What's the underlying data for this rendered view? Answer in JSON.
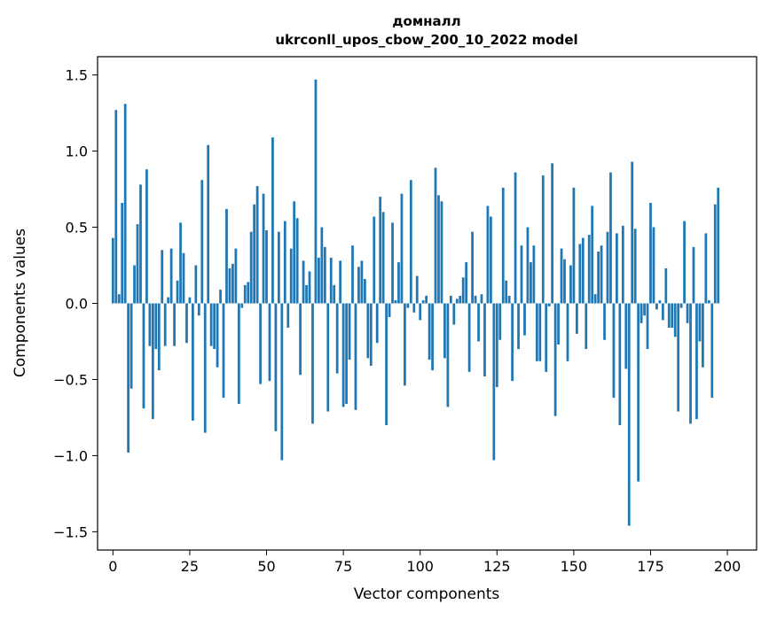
{
  "chart_data": {
    "type": "bar",
    "title_lines": [
      "домналл",
      "ukrconll_upos_cbow_200_10_2022 model"
    ],
    "xlabel": "Vector components",
    "ylabel": "Components values",
    "xlim": [
      -5,
      209.5
    ],
    "ylim": [
      -1.62,
      1.62
    ],
    "xticks": [
      0,
      25,
      50,
      75,
      100,
      125,
      150,
      175,
      200
    ],
    "xtick_labels": [
      "0",
      "25",
      "50",
      "75",
      "100",
      "125",
      "150",
      "175",
      "200"
    ],
    "yticks": [
      -1.5,
      -1.0,
      -0.5,
      0.0,
      0.5,
      1.0,
      1.5
    ],
    "ytick_labels": [
      "−1.5",
      "−1.0",
      "−0.5",
      "0.0",
      "0.5",
      "1.0",
      "1.5"
    ],
    "grid": false,
    "bar_color": "#1f77b4",
    "values": [
      0.43,
      1.27,
      0.06,
      0.66,
      1.31,
      -0.98,
      -0.56,
      0.25,
      0.52,
      0.78,
      -0.69,
      0.88,
      -0.28,
      -0.76,
      -0.3,
      -0.44,
      0.35,
      -0.28,
      0.04,
      0.36,
      -0.28,
      0.15,
      0.53,
      0.33,
      -0.26,
      0.04,
      -0.77,
      0.25,
      -0.08,
      0.81,
      -0.85,
      1.04,
      -0.28,
      -0.3,
      -0.42,
      0.09,
      -0.62,
      0.62,
      0.23,
      0.26,
      0.36,
      -0.66,
      -0.03,
      0.12,
      0.14,
      0.47,
      0.65,
      0.77,
      -0.53,
      0.72,
      0.48,
      -0.51,
      1.09,
      -0.84,
      0.47,
      -1.03,
      0.54,
      -0.16,
      0.36,
      0.67,
      0.56,
      -0.47,
      0.28,
      0.12,
      0.21,
      -0.79,
      1.47,
      0.3,
      0.5,
      0.37,
      -0.71,
      0.3,
      0.12,
      -0.46,
      0.28,
      -0.68,
      -0.66,
      -0.37,
      0.38,
      -0.7,
      0.24,
      0.28,
      0.16,
      -0.36,
      -0.41,
      0.57,
      -0.26,
      0.7,
      0.6,
      -0.8,
      -0.09,
      0.53,
      0.02,
      0.27,
      0.72,
      -0.54,
      -0.03,
      0.81,
      -0.06,
      0.18,
      -0.11,
      0.02,
      0.05,
      -0.37,
      -0.44,
      0.89,
      0.71,
      0.67,
      -0.36,
      -0.68,
      0.05,
      -0.14,
      0.03,
      0.05,
      0.17,
      0.27,
      -0.45,
      0.47,
      0.05,
      -0.25,
      0.06,
      -0.48,
      0.64,
      0.57,
      -1.03,
      -0.55,
      -0.24,
      0.76,
      0.15,
      0.05,
      -0.51,
      0.86,
      -0.3,
      0.38,
      -0.21,
      0.5,
      0.27,
      0.38,
      -0.38,
      -0.38,
      0.84,
      -0.45,
      -0.02,
      0.92,
      -0.74,
      -0.27,
      0.36,
      0.29,
      -0.38,
      0.25,
      0.76,
      -0.2,
      0.39,
      0.43,
      -0.3,
      0.45,
      0.64,
      0.06,
      0.34,
      0.38,
      -0.24,
      0.47,
      0.86,
      -0.62,
      0.46,
      -0.8,
      0.51,
      -0.43,
      -1.46,
      0.93,
      0.49,
      -1.17,
      -0.13,
      -0.08,
      -0.3,
      0.66,
      0.5,
      -0.04,
      0.02,
      -0.11,
      0.23,
      -0.16,
      -0.16,
      -0.22,
      -0.71,
      -0.03,
      0.54,
      -0.13,
      -0.79,
      0.37,
      -0.76,
      -0.25,
      -0.42,
      0.46,
      0.02,
      -0.62,
      0.65,
      0.76
    ]
  }
}
